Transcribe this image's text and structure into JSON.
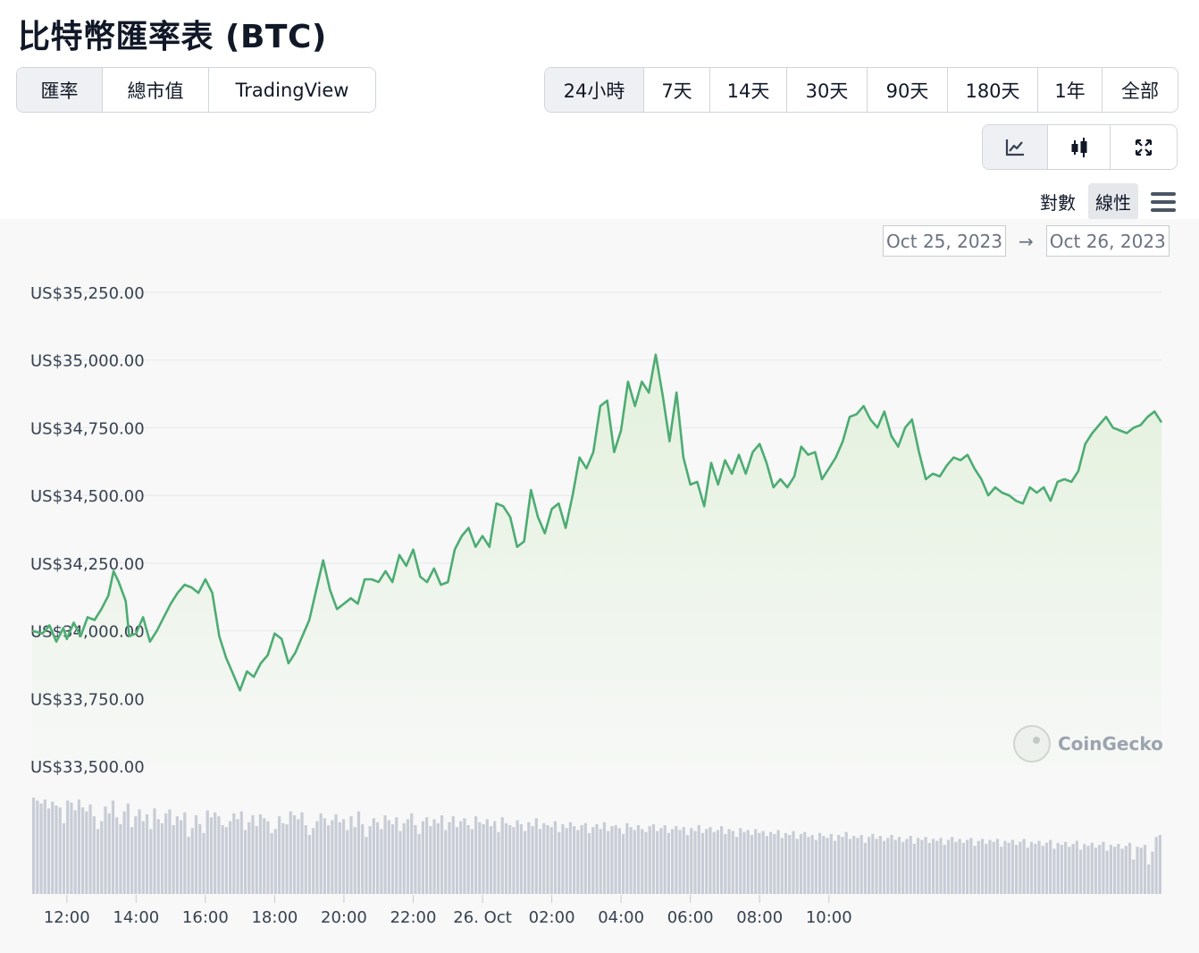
{
  "page": {
    "title": "比特幣匯率表 (BTC)"
  },
  "view_tabs": [
    {
      "label": "匯率",
      "active": true
    },
    {
      "label": "總市值",
      "active": false
    },
    {
      "label": "TradingView",
      "active": false
    }
  ],
  "range_tabs": [
    {
      "label": "24小時",
      "active": true
    },
    {
      "label": "7天",
      "active": false
    },
    {
      "label": "14天",
      "active": false
    },
    {
      "label": "30天",
      "active": false
    },
    {
      "label": "90天",
      "active": false
    },
    {
      "label": "180天",
      "active": false
    },
    {
      "label": "1年",
      "active": false
    },
    {
      "label": "全部",
      "active": false
    }
  ],
  "chart_type_buttons": [
    {
      "icon": "line-chart-icon",
      "active": true
    },
    {
      "icon": "candlestick-icon",
      "active": false
    },
    {
      "icon": "expand-icon",
      "active": false
    }
  ],
  "scale_options": [
    {
      "label": "對數",
      "active": false
    },
    {
      "label": "線性",
      "active": true
    }
  ],
  "date_range": {
    "from": "Oct 25, 2023",
    "arrow": "→",
    "to": "Oct 26, 2023"
  },
  "watermark": "CoinGecko",
  "colors": {
    "line": "#4dac73",
    "fill_top": "#e3f1dd",
    "volume": "#c8ccd6",
    "grid": "#e5e7eb"
  },
  "chart_data": {
    "type": "line",
    "x_unit": "hours since 2023-10-25 11:00 (local)",
    "ylim": [
      33500,
      35250
    ],
    "y_ticks": [
      {
        "value": 35250,
        "label": "US$35,250.00"
      },
      {
        "value": 35000,
        "label": "US$35,000.00"
      },
      {
        "value": 34750,
        "label": "US$34,750.00"
      },
      {
        "value": 34500,
        "label": "US$34,500.00"
      },
      {
        "value": 34250,
        "label": "US$34,250.00"
      },
      {
        "value": 34000,
        "label": "US$34,000.00"
      },
      {
        "value": 33750,
        "label": "US$33,750.00"
      },
      {
        "value": 33500,
        "label": "US$33,500.00"
      }
    ],
    "x_ticks": [
      {
        "label": "12:00"
      },
      {
        "label": "14:00"
      },
      {
        "label": "16:00"
      },
      {
        "label": "18:00"
      },
      {
        "label": "20:00"
      },
      {
        "label": "22:00"
      },
      {
        "label": "26. Oct"
      },
      {
        "label": "02:00"
      },
      {
        "label": "04:00"
      },
      {
        "label": "06:00"
      },
      {
        "label": "08:00"
      },
      {
        "label": "10:00"
      }
    ],
    "series": [
      {
        "name": "",
        "points": [
          [
            0.0,
            34000
          ],
          [
            0.3,
            33990
          ],
          [
            0.5,
            34020
          ],
          [
            0.7,
            33960
          ],
          [
            0.9,
            34010
          ],
          [
            1.0,
            33970
          ],
          [
            1.2,
            34030
          ],
          [
            1.4,
            33980
          ],
          [
            1.6,
            34050
          ],
          [
            1.8,
            34040
          ],
          [
            2.0,
            34080
          ],
          [
            2.2,
            34130
          ],
          [
            2.35,
            34220
          ],
          [
            2.5,
            34180
          ],
          [
            2.7,
            34110
          ],
          [
            2.8,
            33980
          ],
          [
            3.0,
            33990
          ],
          [
            3.2,
            34050
          ],
          [
            3.4,
            33960
          ],
          [
            3.6,
            34000
          ],
          [
            3.8,
            34050
          ],
          [
            4.0,
            34100
          ],
          [
            4.2,
            34140
          ],
          [
            4.4,
            34170
          ],
          [
            4.6,
            34160
          ],
          [
            4.8,
            34140
          ],
          [
            5.0,
            34190
          ],
          [
            5.2,
            34140
          ],
          [
            5.4,
            33980
          ],
          [
            5.6,
            33900
          ],
          [
            5.8,
            33840
          ],
          [
            6.0,
            33780
          ],
          [
            6.2,
            33850
          ],
          [
            6.4,
            33830
          ],
          [
            6.6,
            33880
          ],
          [
            6.8,
            33910
          ],
          [
            7.0,
            33990
          ],
          [
            7.2,
            33970
          ],
          [
            7.4,
            33880
          ],
          [
            7.6,
            33920
          ],
          [
            7.8,
            33980
          ],
          [
            8.0,
            34040
          ],
          [
            8.2,
            34150
          ],
          [
            8.4,
            34260
          ],
          [
            8.6,
            34150
          ],
          [
            8.8,
            34080
          ],
          [
            9.0,
            34100
          ],
          [
            9.2,
            34120
          ],
          [
            9.4,
            34100
          ],
          [
            9.6,
            34190
          ],
          [
            9.8,
            34190
          ],
          [
            10.0,
            34180
          ],
          [
            10.2,
            34220
          ],
          [
            10.4,
            34180
          ],
          [
            10.6,
            34280
          ],
          [
            10.8,
            34240
          ],
          [
            11.0,
            34300
          ],
          [
            11.2,
            34200
          ],
          [
            11.4,
            34180
          ],
          [
            11.6,
            34230
          ],
          [
            11.8,
            34170
          ],
          [
            12.0,
            34180
          ],
          [
            12.2,
            34300
          ],
          [
            12.4,
            34350
          ],
          [
            12.6,
            34380
          ],
          [
            12.8,
            34310
          ],
          [
            13.0,
            34350
          ],
          [
            13.2,
            34310
          ],
          [
            13.4,
            34470
          ],
          [
            13.6,
            34460
          ],
          [
            13.8,
            34420
          ],
          [
            14.0,
            34310
          ],
          [
            14.2,
            34330
          ],
          [
            14.4,
            34520
          ],
          [
            14.6,
            34420
          ],
          [
            14.8,
            34360
          ],
          [
            15.0,
            34450
          ],
          [
            15.2,
            34470
          ],
          [
            15.4,
            34380
          ],
          [
            15.6,
            34500
          ],
          [
            15.8,
            34640
          ],
          [
            16.0,
            34600
          ],
          [
            16.2,
            34660
          ],
          [
            16.4,
            34830
          ],
          [
            16.6,
            34850
          ],
          [
            16.8,
            34660
          ],
          [
            17.0,
            34740
          ],
          [
            17.2,
            34920
          ],
          [
            17.4,
            34830
          ],
          [
            17.6,
            34920
          ],
          [
            17.8,
            34880
          ],
          [
            18.0,
            35020
          ],
          [
            18.2,
            34870
          ],
          [
            18.4,
            34700
          ],
          [
            18.6,
            34880
          ],
          [
            18.8,
            34640
          ],
          [
            19.0,
            34540
          ],
          [
            19.2,
            34550
          ],
          [
            19.4,
            34460
          ],
          [
            19.6,
            34620
          ],
          [
            19.8,
            34540
          ],
          [
            20.0,
            34630
          ],
          [
            20.2,
            34580
          ],
          [
            20.4,
            34650
          ],
          [
            20.6,
            34580
          ],
          [
            20.8,
            34660
          ],
          [
            21.0,
            34690
          ],
          [
            21.2,
            34620
          ],
          [
            21.4,
            34530
          ],
          [
            21.6,
            34560
          ],
          [
            21.8,
            34530
          ],
          [
            22.0,
            34570
          ],
          [
            22.2,
            34680
          ],
          [
            22.4,
            34650
          ],
          [
            22.6,
            34660
          ],
          [
            22.8,
            34560
          ],
          [
            23.0,
            34600
          ],
          [
            23.2,
            34640
          ],
          [
            23.4,
            34700
          ],
          [
            23.6,
            34790
          ],
          [
            23.8,
            34800
          ],
          [
            24.0,
            34830
          ],
          [
            24.2,
            34780
          ],
          [
            24.4,
            34750
          ],
          [
            24.6,
            34810
          ],
          [
            24.8,
            34720
          ],
          [
            25.0,
            34680
          ],
          [
            25.2,
            34750
          ],
          [
            25.4,
            34780
          ],
          [
            25.6,
            34660
          ],
          [
            25.8,
            34560
          ],
          [
            26.0,
            34580
          ],
          [
            26.2,
            34570
          ],
          [
            26.4,
            34610
          ],
          [
            26.6,
            34640
          ],
          [
            26.8,
            34630
          ],
          [
            27.0,
            34650
          ],
          [
            27.2,
            34600
          ],
          [
            27.4,
            34560
          ],
          [
            27.6,
            34500
          ],
          [
            27.8,
            34530
          ],
          [
            28.0,
            34510
          ],
          [
            28.2,
            34500
          ],
          [
            28.4,
            34480
          ],
          [
            28.6,
            34470
          ],
          [
            28.8,
            34530
          ],
          [
            29.0,
            34510
          ],
          [
            29.2,
            34530
          ],
          [
            29.4,
            34480
          ],
          [
            29.6,
            34550
          ],
          [
            29.8,
            34560
          ],
          [
            30.0,
            34550
          ],
          [
            30.2,
            34590
          ],
          [
            30.4,
            34690
          ],
          [
            30.6,
            34730
          ],
          [
            30.8,
            34760
          ],
          [
            31.0,
            34790
          ],
          [
            31.2,
            34750
          ],
          [
            31.4,
            34740
          ],
          [
            31.6,
            34730
          ],
          [
            31.8,
            34750
          ],
          [
            32.0,
            34760
          ],
          [
            32.2,
            34790
          ],
          [
            32.4,
            34810
          ],
          [
            32.6,
            34770
          ]
        ]
      }
    ],
    "volume": [
      0.98,
      0.95,
      0.92,
      0.96,
      0.87,
      0.94,
      0.9,
      0.88,
      0.72,
      0.95,
      0.93,
      0.85,
      0.96,
      0.88,
      0.84,
      0.91,
      0.79,
      0.66,
      0.74,
      0.89,
      0.82,
      0.95,
      0.78,
      0.71,
      0.84,
      0.92,
      0.68,
      0.79,
      0.86,
      0.74,
      0.81,
      0.66,
      0.87,
      0.76,
      0.72,
      0.82,
      0.86,
      0.7,
      0.79,
      0.75,
      0.83,
      0.58,
      0.67,
      0.8,
      0.71,
      0.62,
      0.85,
      0.78,
      0.83,
      0.79,
      0.7,
      0.68,
      0.74,
      0.82,
      0.76,
      0.84,
      0.65,
      0.73,
      0.8,
      0.69,
      0.81,
      0.77,
      0.74,
      0.62,
      0.66,
      0.79,
      0.72,
      0.71,
      0.84,
      0.8,
      0.76,
      0.83,
      0.7,
      0.6,
      0.67,
      0.74,
      0.82,
      0.77,
      0.7,
      0.75,
      0.81,
      0.73,
      0.76,
      0.65,
      0.79,
      0.68,
      0.84,
      0.71,
      0.58,
      0.69,
      0.77,
      0.73,
      0.66,
      0.8,
      0.75,
      0.71,
      0.78,
      0.64,
      0.72,
      0.76,
      0.82,
      0.7,
      0.61,
      0.74,
      0.78,
      0.69,
      0.76,
      0.72,
      0.8,
      0.65,
      0.73,
      0.79,
      0.68,
      0.74,
      0.77,
      0.7,
      0.66,
      0.79,
      0.73,
      0.71,
      0.76,
      0.69,
      0.74,
      0.63,
      0.78,
      0.72,
      0.7,
      0.68,
      0.75,
      0.71,
      0.64,
      0.73,
      0.69,
      0.77,
      0.66,
      0.72,
      0.7,
      0.68,
      0.74,
      0.63,
      0.71,
      0.67,
      0.73,
      0.69,
      0.65,
      0.7,
      0.72,
      0.62,
      0.68,
      0.71,
      0.66,
      0.73,
      0.64,
      0.69,
      0.7,
      0.67,
      0.61,
      0.72,
      0.68,
      0.65,
      0.7,
      0.66,
      0.63,
      0.69,
      0.71,
      0.64,
      0.67,
      0.7,
      0.62,
      0.66,
      0.69,
      0.65,
      0.68,
      0.6,
      0.67,
      0.64,
      0.7,
      0.62,
      0.66,
      0.68,
      0.63,
      0.65,
      0.69,
      0.61,
      0.66,
      0.64,
      0.58,
      0.67,
      0.63,
      0.65,
      0.6,
      0.66,
      0.62,
      0.64,
      0.59,
      0.63,
      0.61,
      0.65,
      0.57,
      0.62,
      0.6,
      0.64,
      0.56,
      0.61,
      0.63,
      0.58,
      0.6,
      0.55,
      0.62,
      0.59,
      0.57,
      0.61,
      0.54,
      0.6,
      0.58,
      0.63,
      0.56,
      0.59,
      0.57,
      0.6,
      0.52,
      0.58,
      0.61,
      0.56,
      0.59,
      0.54,
      0.57,
      0.6,
      0.55,
      0.58,
      0.53,
      0.56,
      0.59,
      0.51,
      0.57,
      0.55,
      0.58,
      0.52,
      0.56,
      0.54,
      0.57,
      0.5,
      0.55,
      0.58,
      0.53,
      0.56,
      0.52,
      0.55,
      0.57,
      0.49,
      0.54,
      0.56,
      0.51,
      0.55,
      0.53,
      0.56,
      0.48,
      0.54,
      0.52,
      0.55,
      0.5,
      0.53,
      0.56,
      0.47,
      0.53,
      0.51,
      0.54,
      0.49,
      0.52,
      0.55,
      0.46,
      0.52,
      0.5,
      0.53,
      0.48,
      0.51,
      0.54,
      0.45,
      0.51,
      0.49,
      0.52,
      0.47,
      0.5,
      0.53,
      0.44,
      0.5,
      0.48,
      0.51,
      0.46,
      0.49,
      0.52,
      0.35,
      0.48,
      0.47,
      0.5,
      0.3,
      0.43,
      0.58,
      0.6
    ]
  }
}
